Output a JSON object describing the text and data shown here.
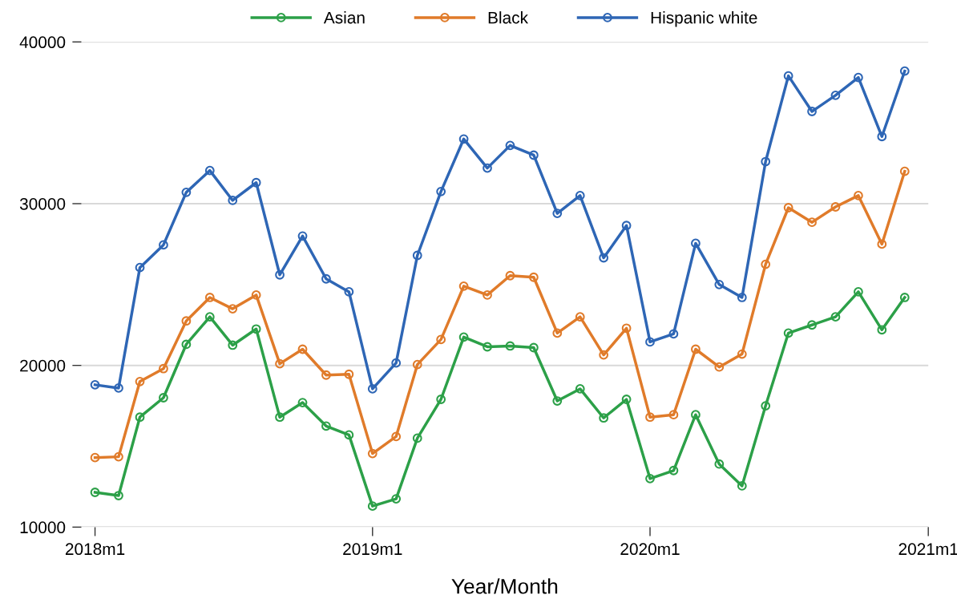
{
  "chart_data": {
    "type": "line",
    "xlabel": "Year/Month",
    "x": [
      "2018-01",
      "2018-02",
      "2018-03",
      "2018-04",
      "2018-05",
      "2018-06",
      "2018-07",
      "2018-08",
      "2018-09",
      "2018-10",
      "2018-11",
      "2018-12",
      "2019-01",
      "2019-02",
      "2019-03",
      "2019-04",
      "2019-05",
      "2019-06",
      "2019-07",
      "2019-08",
      "2019-09",
      "2019-10",
      "2019-11",
      "2019-12",
      "2020-01",
      "2020-02",
      "2020-03",
      "2020-04",
      "2020-05",
      "2020-06",
      "2020-07",
      "2020-08",
      "2020-09",
      "2020-10",
      "2020-11",
      "2020-12"
    ],
    "xlim": [
      "2017-12-14",
      "2021-01"
    ],
    "xticks": [
      {
        "value": "2018-01",
        "label": "2018m1"
      },
      {
        "value": "2019-01",
        "label": "2019m1"
      },
      {
        "value": "2020-01",
        "label": "2020m1"
      },
      {
        "value": "2021-01",
        "label": "2021m1"
      }
    ],
    "ylim": [
      10000,
      40000
    ],
    "yticks": [
      10000,
      20000,
      30000,
      40000
    ],
    "grid": "y",
    "legend": "top",
    "marker": "circle",
    "line_style": "solid",
    "series": [
      {
        "name": "Asian",
        "color": "#2ca048",
        "values": [
          12150,
          11950,
          16800,
          18000,
          21300,
          23000,
          21250,
          22250,
          16800,
          17700,
          16250,
          15700,
          11300,
          11750,
          15500,
          17900,
          21750,
          21150,
          21200,
          21100,
          17800,
          18550,
          16750,
          17900,
          13000,
          13500,
          16950,
          13900,
          12550,
          17500,
          22000,
          22500,
          23000,
          24550,
          22200,
          24200
        ]
      },
      {
        "name": "Black",
        "color": "#e07b2a",
        "values": [
          14300,
          14350,
          19000,
          19800,
          22750,
          24200,
          23500,
          24350,
          20100,
          21000,
          19400,
          19450,
          14550,
          15600,
          20050,
          21600,
          24900,
          24350,
          25550,
          25450,
          22000,
          23000,
          20650,
          22300,
          16800,
          16950,
          21000,
          19900,
          20700,
          26250,
          29750,
          28850,
          29800,
          30500,
          27500,
          32000
        ]
      },
      {
        "name": "Hispanic white",
        "color": "#2e66b5",
        "values": [
          18800,
          18600,
          26050,
          27450,
          30700,
          32050,
          30200,
          31300,
          25600,
          28000,
          25350,
          24550,
          18550,
          20150,
          26800,
          30750,
          34000,
          32200,
          33600,
          33000,
          29400,
          30500,
          26650,
          28650,
          21450,
          21950,
          27550,
          25000,
          24200,
          32600,
          37900,
          35700,
          36700,
          37800,
          34150,
          38200
        ]
      }
    ]
  }
}
